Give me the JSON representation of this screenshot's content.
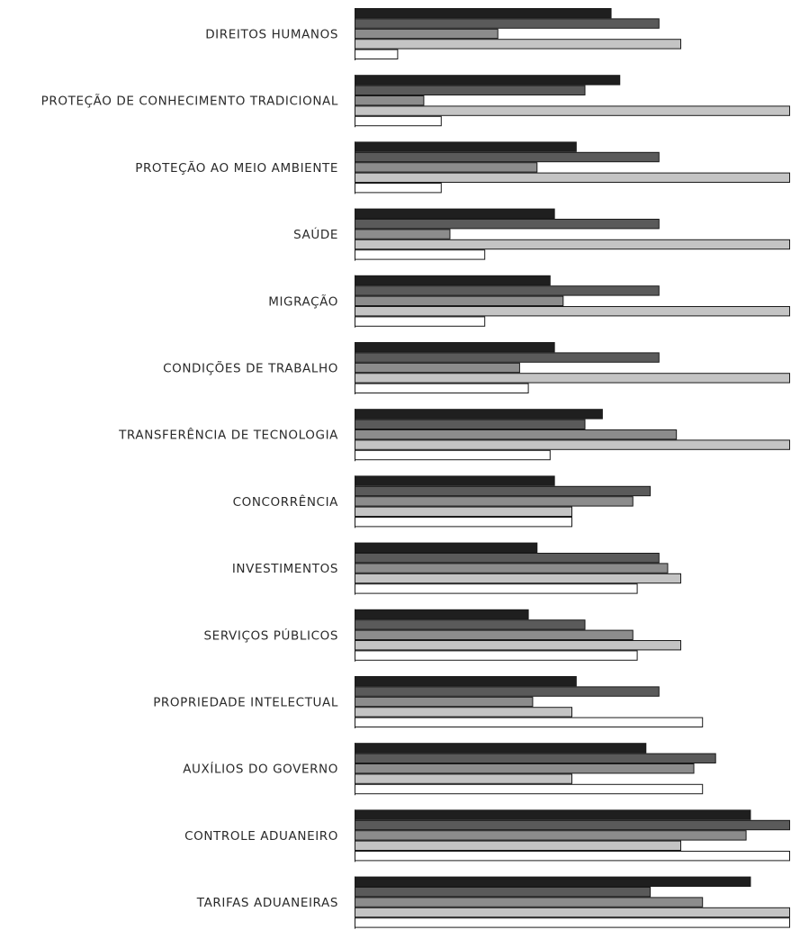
{
  "chart_data": {
    "type": "bar",
    "orientation": "horizontal",
    "grid": false,
    "legend": "none",
    "xlim": [
      0,
      100
    ],
    "categories": [
      "DIREITOS HUMANOS",
      "PROTEÇÃO DE CONHECIMENTO TRADICIONAL",
      "PROTEÇÃO AO MEIO AMBIENTE",
      "SAÚDE",
      "MIGRAÇÃO",
      "CONDIÇÕES DE TRABALHO",
      "TRANSFERÊNCIA DE TECNOLOGIA",
      "CONCORRÊNCIA",
      "INVESTIMENTOS",
      "SERVIÇOS PÚBLICOS",
      "PROPRIEDADE INTELECTUAL",
      "AUXÍLIOS DO GOVERNO",
      "CONTROLE ADUANEIRO",
      "TARIFAS ADUANEIRAS"
    ],
    "series": [
      {
        "color": "#1f1f1f",
        "values": [
          59,
          61,
          51,
          46,
          45,
          46,
          57,
          46,
          42,
          40,
          51,
          67,
          91,
          91
        ]
      },
      {
        "color": "#5a5a5a",
        "values": [
          70,
          53,
          70,
          70,
          70,
          70,
          53,
          68,
          70,
          53,
          70,
          83,
          100,
          68
        ]
      },
      {
        "color": "#8c8c8c",
        "values": [
          33,
          16,
          42,
          22,
          48,
          38,
          74,
          64,
          72,
          64,
          41,
          78,
          90,
          80
        ]
      },
      {
        "color": "#c4c4c4",
        "values": [
          75,
          100,
          100,
          100,
          100,
          100,
          100,
          50,
          75,
          75,
          50,
          50,
          75,
          100
        ]
      },
      {
        "color": "#ffffff",
        "values": [
          10,
          20,
          20,
          30,
          30,
          40,
          45,
          50,
          65,
          65,
          80,
          80,
          100,
          100
        ]
      }
    ]
  }
}
